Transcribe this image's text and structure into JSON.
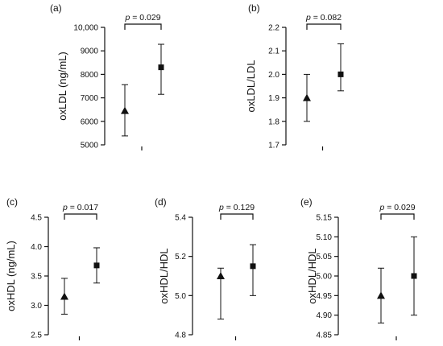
{
  "chart_data": [
    {
      "type": "scatter",
      "panel_label": "(a)",
      "ylabel": "oxLDL (ng/mL)",
      "ylim": [
        5000,
        10000
      ],
      "yticks": [
        "5000",
        "6000",
        "7000",
        "8000",
        "9000",
        "10,000"
      ],
      "points": [
        {
          "marker": "triangle",
          "mean": 6450,
          "low": 5380,
          "high": 7560
        },
        {
          "marker": "square",
          "mean": 8300,
          "low": 7150,
          "high": 9280
        }
      ],
      "p_label": "p = 0.029"
    },
    {
      "type": "scatter",
      "panel_label": "(b)",
      "ylabel": "oxLDL/LDL",
      "ylim": [
        1.7,
        2.2
      ],
      "yticks": [
        "1.7",
        "1.8",
        "1.9",
        "2.0",
        "2.1",
        "2.2"
      ],
      "points": [
        {
          "marker": "triangle",
          "mean": 1.9,
          "low": 1.8,
          "high": 2.0
        },
        {
          "marker": "square",
          "mean": 2.0,
          "low": 1.93,
          "high": 2.13
        }
      ],
      "p_label": "p = 0.082"
    },
    {
      "type": "scatter",
      "panel_label": "(c)",
      "ylabel": "oxHDL (ng/mL)",
      "ylim": [
        2.5,
        4.5
      ],
      "yticks": [
        "2.5",
        "3.0",
        "3.5",
        "4.0",
        "4.5"
      ],
      "points": [
        {
          "marker": "triangle",
          "mean": 3.15,
          "low": 2.85,
          "high": 3.46
        },
        {
          "marker": "square",
          "mean": 3.68,
          "low": 3.38,
          "high": 3.98
        }
      ],
      "p_label": "p = 0.017"
    },
    {
      "type": "scatter",
      "panel_label": "(d)",
      "ylabel": "oxHDL/HDL",
      "ylim": [
        4.8,
        5.4
      ],
      "yticks": [
        "4.8",
        "5.0",
        "5.2",
        "5.4"
      ],
      "points": [
        {
          "marker": "triangle",
          "mean": 5.1,
          "low": 4.88,
          "high": 5.14
        },
        {
          "marker": "square",
          "mean": 5.15,
          "low": 5.0,
          "high": 5.26
        }
      ],
      "p_label": "p = 0.129"
    },
    {
      "type": "scatter",
      "panel_label": "(e)",
      "ylabel": "oxHDL/HDL",
      "ylim": [
        4.85,
        5.15
      ],
      "yticks": [
        "4.85",
        "4.90",
        "4.95",
        "5.00",
        "5.05",
        "5.10",
        "5.15"
      ],
      "points": [
        {
          "marker": "triangle",
          "mean": 4.95,
          "low": 4.88,
          "high": 5.02
        },
        {
          "marker": "square",
          "mean": 5.0,
          "low": 4.9,
          "high": 5.1
        }
      ],
      "p_label": "p = 0.029"
    }
  ]
}
